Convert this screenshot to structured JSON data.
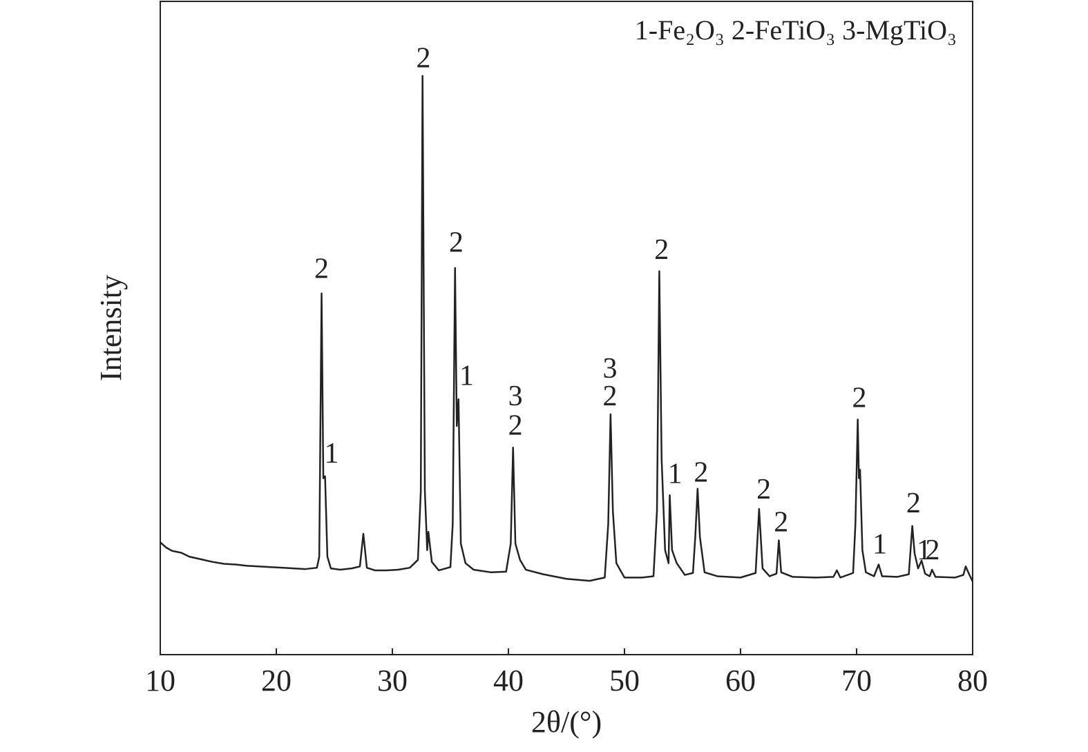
{
  "chart_data": {
    "type": "line",
    "phase_key": "1-Fe₂O₃  2-FeTiO₃  3-MgTiO₃",
    "xlabel": "2θ/(°)",
    "ylabel": "Intensity",
    "color": "#222222",
    "xlim": [
      10,
      80
    ],
    "ylim": [
      0,
      100
    ],
    "xticks": [
      10,
      20,
      30,
      40,
      50,
      60,
      70,
      80
    ],
    "x": [
      10,
      10.5,
      11,
      11.8,
      12.5,
      13.5,
      14.5,
      15.5,
      16.5,
      17.5,
      18.5,
      19.5,
      20.5,
      21.5,
      22.5,
      23.5,
      23.7,
      23.9,
      24.05,
      24.2,
      24.4,
      24.7,
      25.5,
      26.5,
      27.2,
      27.5,
      27.8,
      28.5,
      29.5,
      30.5,
      31.5,
      32.2,
      32.45,
      32.6,
      32.8,
      33.0,
      33.1,
      33.4,
      34.0,
      35.0,
      35.2,
      35.4,
      35.55,
      35.7,
      35.9,
      36.3,
      37.0,
      38.5,
      39.8,
      40.2,
      40.4,
      40.6,
      41.0,
      41.5,
      43,
      45,
      47,
      48.3,
      48.6,
      48.8,
      49.0,
      49.3,
      50,
      51.5,
      52.5,
      52.8,
      53.0,
      53.2,
      53.5,
      53.8,
      53.9,
      54.1,
      54.5,
      55.2,
      55.9,
      56.1,
      56.3,
      56.5,
      56.9,
      58,
      60,
      61.3,
      61.6,
      61.9,
      62.5,
      63.1,
      63.3,
      63.5,
      64.5,
      66.5,
      68.0,
      68.3,
      68.6,
      69.7,
      69.9,
      70.1,
      70.2,
      70.3,
      70.5,
      70.8,
      71.5,
      71.9,
      72.2,
      73.5,
      74.5,
      74.8,
      75.0,
      75.3,
      75.6,
      75.9,
      76.3,
      76.5,
      76.8,
      78.5,
      79.2,
      79.4,
      79.7,
      80
    ],
    "values": [
      17.2,
      16.4,
      15.9,
      15.6,
      15.0,
      14.6,
      14.2,
      13.9,
      13.8,
      13.6,
      13.5,
      13.4,
      13.3,
      13.2,
      13.1,
      13.3,
      15,
      55.3,
      27,
      27.3,
      15,
      13.2,
      13.0,
      13.2,
      13.5,
      18.5,
      13.3,
      12.9,
      12.9,
      13.0,
      13.3,
      14.5,
      25,
      88.6,
      25,
      16,
      18.8,
      14.2,
      12.9,
      13.4,
      20,
      59.2,
      35,
      39.1,
      17,
      14.0,
      13.0,
      12.6,
      12.7,
      17,
      31.7,
      17,
      14.5,
      13.0,
      12.3,
      11.6,
      11.3,
      11.8,
      20,
      36.8,
      22,
      14,
      11.8,
      11.8,
      12.0,
      22,
      58.7,
      30,
      16,
      14,
      24.4,
      16,
      14,
      12.2,
      12.5,
      18,
      25.4,
      18,
      12.6,
      12.0,
      11.8,
      12.5,
      22.3,
      13.2,
      12.0,
      12.4,
      17.5,
      12.6,
      11.9,
      11.8,
      11.9,
      12.9,
      11.8,
      12.5,
      20,
      36.0,
      27,
      28.3,
      16,
      12.6,
      12.0,
      13.8,
      12.0,
      11.9,
      12.3,
      19.7,
      15.5,
      13.2,
      14.4,
      12.4,
      12.0,
      13.0,
      11.9,
      11.8,
      12.2,
      13.5,
      12.3,
      11.2
    ],
    "annotations": [
      {
        "text": "2",
        "x": 23.9,
        "y": 58.7
      },
      {
        "text": "1",
        "x": 24.76,
        "y": 30.4
      },
      {
        "text": "2",
        "x": 32.68,
        "y": 90.9
      },
      {
        "text": "2",
        "x": 35.5,
        "y": 62.7
      },
      {
        "text": "1",
        "x": 36.4,
        "y": 42.3
      },
      {
        "text": "3",
        "x": 40.6,
        "y": 39.2
      },
      {
        "text": "2",
        "x": 40.6,
        "y": 34.7
      },
      {
        "text": "3",
        "x": 48.75,
        "y": 43.4
      },
      {
        "text": "2",
        "x": 48.75,
        "y": 39.2
      },
      {
        "text": "2",
        "x": 53.2,
        "y": 61.6
      },
      {
        "text": "1",
        "x": 54.35,
        "y": 27.3
      },
      {
        "text": "2",
        "x": 56.6,
        "y": 27.5
      },
      {
        "text": "2",
        "x": 62.0,
        "y": 24.9
      },
      {
        "text": "2",
        "x": 63.5,
        "y": 19.9
      },
      {
        "text": "2",
        "x": 70.24,
        "y": 38.9
      },
      {
        "text": "1",
        "x": 72.0,
        "y": 16.5
      },
      {
        "text": "2",
        "x": 74.9,
        "y": 22.8
      },
      {
        "text": "1",
        "x": 75.8,
        "y": 15.6
      },
      {
        "text": "2",
        "x": 76.55,
        "y": 15.6
      }
    ]
  }
}
